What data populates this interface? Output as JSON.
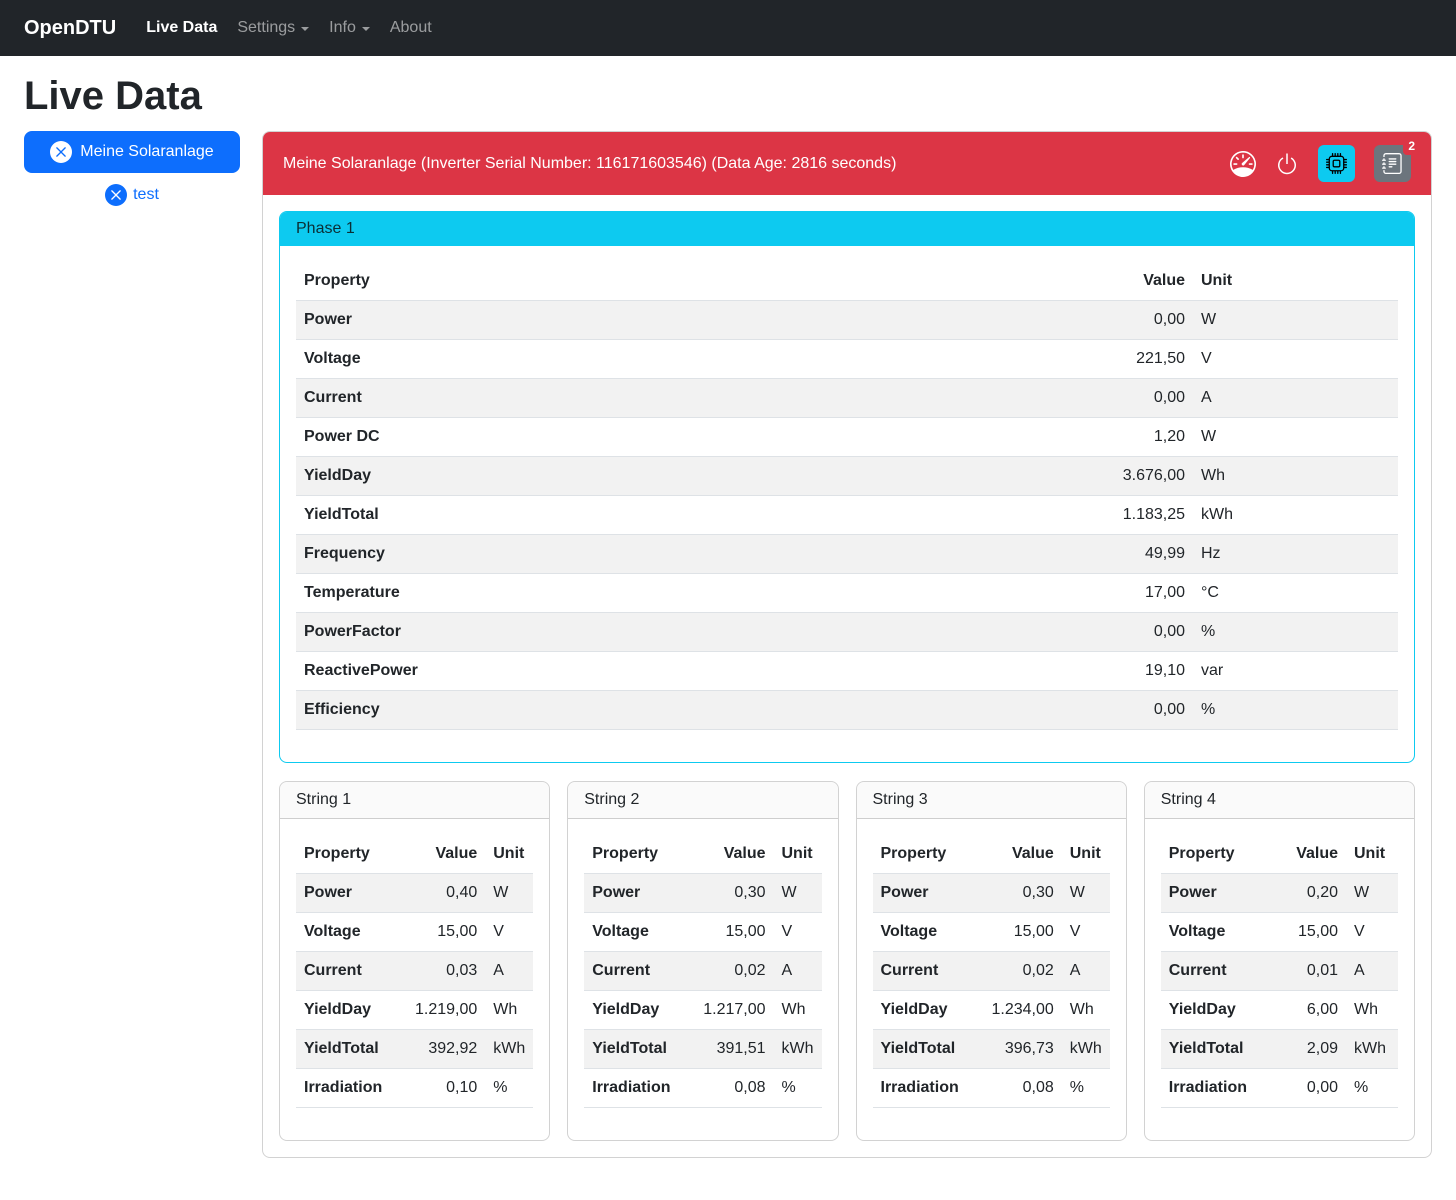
{
  "navbar": {
    "brand": "OpenDTU",
    "items": [
      {
        "label": "Live Data",
        "active": true,
        "dropdown": false
      },
      {
        "label": "Settings",
        "active": false,
        "dropdown": true
      },
      {
        "label": "Info",
        "active": false,
        "dropdown": true
      },
      {
        "label": "About",
        "active": false,
        "dropdown": false
      }
    ]
  },
  "page": {
    "title": "Live Data"
  },
  "sidebar": {
    "inverters": [
      {
        "label": "Meine Solaranlage",
        "selected": true
      },
      {
        "label": "test",
        "selected": false
      }
    ]
  },
  "inverter_panel": {
    "header": "Meine Solaranlage (Inverter Serial Number: 116171603546) (Data Age: 2816 seconds)",
    "icons": [
      {
        "name": "speedometer-icon"
      },
      {
        "name": "power-icon"
      },
      {
        "name": "cpu-icon"
      },
      {
        "name": "journal-icon"
      }
    ],
    "badge_count": "2"
  },
  "phase": {
    "title": "Phase 1",
    "columns": [
      "Property",
      "Value",
      "Unit"
    ],
    "rows": [
      [
        "Power",
        "0,00",
        "W"
      ],
      [
        "Voltage",
        "221,50",
        "V"
      ],
      [
        "Current",
        "0,00",
        "A"
      ],
      [
        "Power DC",
        "1,20",
        "W"
      ],
      [
        "YieldDay",
        "3.676,00",
        "Wh"
      ],
      [
        "YieldTotal",
        "1.183,25",
        "kWh"
      ],
      [
        "Frequency",
        "49,99",
        "Hz"
      ],
      [
        "Temperature",
        "17,00",
        "°C"
      ],
      [
        "PowerFactor",
        "0,00",
        "%"
      ],
      [
        "ReactivePower",
        "19,10",
        "var"
      ],
      [
        "Efficiency",
        "0,00",
        "%"
      ]
    ]
  },
  "strings": [
    {
      "title": "String 1",
      "columns": [
        "Property",
        "Value",
        "Unit"
      ],
      "rows": [
        [
          "Power",
          "0,40",
          "W"
        ],
        [
          "Voltage",
          "15,00",
          "V"
        ],
        [
          "Current",
          "0,03",
          "A"
        ],
        [
          "YieldDay",
          "1.219,00",
          "Wh"
        ],
        [
          "YieldTotal",
          "392,92",
          "kWh"
        ],
        [
          "Irradiation",
          "0,10",
          "%"
        ]
      ]
    },
    {
      "title": "String 2",
      "columns": [
        "Property",
        "Value",
        "Unit"
      ],
      "rows": [
        [
          "Power",
          "0,30",
          "W"
        ],
        [
          "Voltage",
          "15,00",
          "V"
        ],
        [
          "Current",
          "0,02",
          "A"
        ],
        [
          "YieldDay",
          "1.217,00",
          "Wh"
        ],
        [
          "YieldTotal",
          "391,51",
          "kWh"
        ],
        [
          "Irradiation",
          "0,08",
          "%"
        ]
      ]
    },
    {
      "title": "String 3",
      "columns": [
        "Property",
        "Value",
        "Unit"
      ],
      "rows": [
        [
          "Power",
          "0,30",
          "W"
        ],
        [
          "Voltage",
          "15,00",
          "V"
        ],
        [
          "Current",
          "0,02",
          "A"
        ],
        [
          "YieldDay",
          "1.234,00",
          "Wh"
        ],
        [
          "YieldTotal",
          "396,73",
          "kWh"
        ],
        [
          "Irradiation",
          "0,08",
          "%"
        ]
      ]
    },
    {
      "title": "String 4",
      "columns": [
        "Property",
        "Value",
        "Unit"
      ],
      "rows": [
        [
          "Power",
          "0,20",
          "W"
        ],
        [
          "Voltage",
          "15,00",
          "V"
        ],
        [
          "Current",
          "0,01",
          "A"
        ],
        [
          "YieldDay",
          "6,00",
          "Wh"
        ],
        [
          "YieldTotal",
          "2,09",
          "kWh"
        ],
        [
          "Irradiation",
          "0,00",
          "%"
        ]
      ]
    }
  ],
  "colors": {
    "navbar_bg": "#212529",
    "primary": "#0d6efd",
    "danger": "#dc3545",
    "info": "#0dcaf0",
    "secondary": "#6c757d",
    "striped_row": "#f2f2f2",
    "table_border": "#dee2e6"
  }
}
